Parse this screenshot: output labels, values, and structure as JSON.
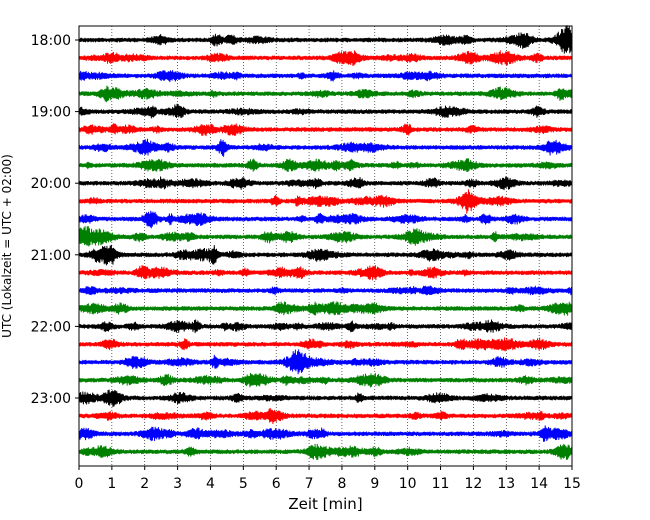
{
  "chart_data": {
    "type": "line",
    "title": "",
    "xlabel": "Zeit  [min]",
    "ylabel": "UTC (Lokalzeit = UTC + 02:00)",
    "xlim": [
      0,
      15
    ],
    "x_ticks": [
      "0",
      "1",
      "2",
      "3",
      "4",
      "5",
      "6",
      "7",
      "8",
      "9",
      "10",
      "11",
      "12",
      "13",
      "14",
      "15"
    ],
    "y_tick_labels": [
      "18:00",
      "19:00",
      "20:00",
      "21:00",
      "22:00",
      "23:00"
    ],
    "grid": "vertical dotted lines at each minute",
    "series_colors": [
      "#000000",
      "#ff0000",
      "#0000ff",
      "#008000"
    ],
    "traces": [
      {
        "start": "18:00",
        "color": "#000000"
      },
      {
        "start": "18:15",
        "color": "#ff0000"
      },
      {
        "start": "18:30",
        "color": "#0000ff"
      },
      {
        "start": "18:45",
        "color": "#008000"
      },
      {
        "start": "19:00",
        "color": "#000000"
      },
      {
        "start": "19:15",
        "color": "#ff0000"
      },
      {
        "start": "19:30",
        "color": "#0000ff"
      },
      {
        "start": "19:45",
        "color": "#008000"
      },
      {
        "start": "20:00",
        "color": "#000000"
      },
      {
        "start": "20:15",
        "color": "#ff0000"
      },
      {
        "start": "20:30",
        "color": "#0000ff"
      },
      {
        "start": "20:45",
        "color": "#008000"
      },
      {
        "start": "21:00",
        "color": "#000000"
      },
      {
        "start": "21:15",
        "color": "#ff0000"
      },
      {
        "start": "21:30",
        "color": "#0000ff"
      },
      {
        "start": "21:45",
        "color": "#008000"
      },
      {
        "start": "22:00",
        "color": "#000000"
      },
      {
        "start": "22:15",
        "color": "#ff0000"
      },
      {
        "start": "22:30",
        "color": "#0000ff"
      },
      {
        "start": "22:45",
        "color": "#008000"
      },
      {
        "start": "23:00",
        "color": "#000000"
      },
      {
        "start": "23:15",
        "color": "#ff0000"
      },
      {
        "start": "23:30",
        "color": "#0000ff"
      },
      {
        "start": "23:45",
        "color": "#008000"
      }
    ]
  }
}
